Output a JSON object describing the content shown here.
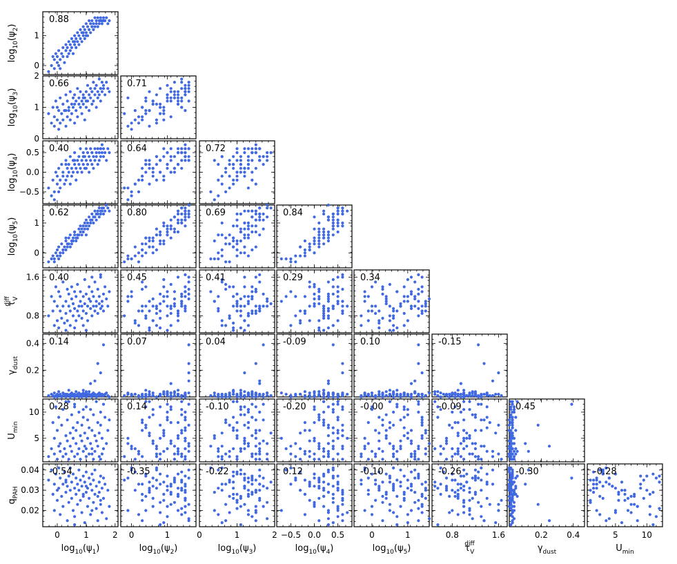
{
  "chart_data": {
    "type": "scatter",
    "layout": "corner",
    "marker_color": "#4169E1",
    "variables": [
      {
        "key": "psi1",
        "label_main": "log",
        "label_sub": "10",
        "label_rest": "(ψ",
        "label_sub2": "1",
        "label_end": ")",
        "range": [
          -0.5,
          2.1
        ],
        "ticks": [
          0,
          1,
          2
        ],
        "tick_labels": [
          "0",
          "1",
          "2"
        ]
      },
      {
        "key": "psi2",
        "label_main": "log",
        "label_sub": "10",
        "label_rest": "(ψ",
        "label_sub2": "2",
        "label_end": ")",
        "range": [
          -0.3,
          1.8
        ],
        "ticks": [
          0,
          1
        ],
        "tick_labels": [
          "0",
          "1"
        ]
      },
      {
        "key": "psi3",
        "label_main": "log",
        "label_sub": "10",
        "label_rest": "(ψ",
        "label_sub2": "3",
        "label_end": ")",
        "range": [
          0,
          2.0
        ],
        "ticks": [
          0,
          1,
          2
        ],
        "tick_labels": [
          "0",
          "1",
          "2"
        ]
      },
      {
        "key": "psi4",
        "label_main": "log",
        "label_sub": "10",
        "label_rest": "(ψ",
        "label_sub2": "4",
        "label_end": ")",
        "range": [
          -0.8,
          0.8
        ],
        "ticks": [
          -0.5,
          0.0,
          0.5
        ],
        "tick_labels": [
          "−0.5",
          "0.0",
          "0.5"
        ]
      },
      {
        "key": "psi5",
        "label_main": "log",
        "label_sub": "10",
        "label_rest": "(ψ",
        "label_sub2": "5",
        "label_end": ")",
        "range": [
          -0.5,
          1.6
        ],
        "ticks": [
          0,
          1
        ],
        "tick_labels": [
          "0",
          "1"
        ]
      },
      {
        "key": "tauV",
        "label_main": "τ",
        "label_sub": "V",
        "label_sup": "diff",
        "range": [
          0.45,
          1.75
        ],
        "ticks": [
          0.8,
          1.6
        ],
        "tick_labels": [
          "0.8",
          "1.6"
        ]
      },
      {
        "key": "gamma",
        "label_main": "γ",
        "label_sub": "dust",
        "range": [
          0.0,
          0.47
        ],
        "ticks": [
          0.2,
          0.4
        ],
        "tick_labels": [
          "0.2",
          "0.4"
        ]
      },
      {
        "key": "umin",
        "label_main": "U",
        "label_sub": "min",
        "range": [
          0.5,
          12.5
        ],
        "ticks": [
          5,
          10
        ],
        "tick_labels": [
          "5",
          "10"
        ]
      },
      {
        "key": "qpah",
        "label_main": "q",
        "label_sub": "PAH",
        "range": [
          0.012,
          0.043
        ],
        "ticks": [
          0.02,
          0.03,
          0.04
        ],
        "tick_labels": [
          "0.02",
          "0.03",
          "0.04"
        ]
      }
    ],
    "correlations": [
      {
        "row": 1,
        "col": 0,
        "r": "0.88"
      },
      {
        "row": 2,
        "col": 0,
        "r": "0.66"
      },
      {
        "row": 2,
        "col": 1,
        "r": "0.71"
      },
      {
        "row": 3,
        "col": 0,
        "r": "0.40"
      },
      {
        "row": 3,
        "col": 1,
        "r": "0.64"
      },
      {
        "row": 3,
        "col": 2,
        "r": "0.72"
      },
      {
        "row": 4,
        "col": 0,
        "r": "0.62"
      },
      {
        "row": 4,
        "col": 1,
        "r": "0.80"
      },
      {
        "row": 4,
        "col": 2,
        "r": "0.69"
      },
      {
        "row": 4,
        "col": 3,
        "r": "0.84"
      },
      {
        "row": 5,
        "col": 0,
        "r": "0.40"
      },
      {
        "row": 5,
        "col": 1,
        "r": "0.45"
      },
      {
        "row": 5,
        "col": 2,
        "r": "0.41"
      },
      {
        "row": 5,
        "col": 3,
        "r": "0.29"
      },
      {
        "row": 5,
        "col": 4,
        "r": "0.34"
      },
      {
        "row": 6,
        "col": 0,
        "r": "0.14"
      },
      {
        "row": 6,
        "col": 1,
        "r": "0.07"
      },
      {
        "row": 6,
        "col": 2,
        "r": "0.04"
      },
      {
        "row": 6,
        "col": 3,
        "r": "-0.09"
      },
      {
        "row": 6,
        "col": 4,
        "r": "0.10"
      },
      {
        "row": 6,
        "col": 5,
        "r": "-0.15"
      },
      {
        "row": 7,
        "col": 0,
        "r": "0.28"
      },
      {
        "row": 7,
        "col": 1,
        "r": "0.14"
      },
      {
        "row": 7,
        "col": 2,
        "r": "-0.10"
      },
      {
        "row": 7,
        "col": 3,
        "r": "-0.20"
      },
      {
        "row": 7,
        "col": 4,
        "r": "-0.00"
      },
      {
        "row": 7,
        "col": 5,
        "r": "-0.09"
      },
      {
        "row": 7,
        "col": 6,
        "r": "0.45"
      },
      {
        "row": 8,
        "col": 0,
        "r": "-0.54"
      },
      {
        "row": 8,
        "col": 1,
        "r": "-0.35"
      },
      {
        "row": 8,
        "col": 2,
        "r": "-0.22"
      },
      {
        "row": 8,
        "col": 3,
        "r": "0.12"
      },
      {
        "row": 8,
        "col": 4,
        "r": "-0.10"
      },
      {
        "row": 8,
        "col": 5,
        "r": "-0.26"
      },
      {
        "row": 8,
        "col": 6,
        "r": "-0.30"
      },
      {
        "row": 8,
        "col": 7,
        "r": "-0.28"
      }
    ],
    "points": {
      "psi1": [
        -0.3,
        -0.2,
        -0.15,
        -0.1,
        -0.1,
        -0.05,
        0.0,
        0.0,
        0.05,
        0.05,
        0.1,
        0.1,
        0.15,
        0.2,
        0.2,
        0.25,
        0.3,
        0.3,
        0.35,
        0.35,
        0.4,
        0.4,
        0.45,
        0.45,
        0.5,
        0.5,
        0.55,
        0.55,
        0.6,
        0.6,
        0.65,
        0.65,
        0.7,
        0.7,
        0.75,
        0.75,
        0.8,
        0.8,
        0.85,
        0.85,
        0.9,
        0.9,
        0.95,
        0.95,
        1.0,
        1.0,
        1.05,
        1.05,
        1.1,
        1.1,
        1.15,
        1.15,
        1.2,
        1.2,
        1.25,
        1.25,
        1.3,
        1.3,
        1.35,
        1.35,
        1.4,
        1.4,
        1.45,
        1.45,
        1.5,
        1.5,
        1.55,
        1.55,
        1.6,
        1.6,
        1.65,
        1.7,
        1.75,
        1.8,
        0.3,
        0.6,
        0.9,
        1.2,
        1.5,
        1.0
      ],
      "psi2": [
        -0.2,
        0.0,
        0.3,
        0.2,
        -0.1,
        0.4,
        0.1,
        0.3,
        0.0,
        0.5,
        0.2,
        -0.1,
        0.4,
        0.3,
        0.6,
        0.1,
        0.5,
        0.7,
        0.3,
        0.6,
        0.4,
        0.8,
        0.5,
        0.7,
        0.6,
        0.9,
        0.4,
        0.8,
        0.7,
        1.0,
        0.6,
        0.9,
        0.8,
        1.1,
        0.7,
        1.0,
        0.9,
        1.2,
        0.8,
        1.1,
        1.0,
        1.3,
        0.9,
        1.2,
        1.1,
        1.4,
        1.0,
        1.3,
        1.2,
        1.5,
        1.1,
        1.4,
        1.3,
        1.5,
        1.2,
        1.4,
        1.3,
        1.6,
        1.4,
        1.5,
        1.3,
        1.6,
        1.4,
        1.5,
        1.5,
        1.6,
        1.4,
        1.5,
        1.6,
        1.5,
        1.5,
        1.6,
        1.4,
        1.5,
        0.5,
        0.8,
        1.1,
        1.3,
        1.5,
        1.0
      ],
      "psi3": [
        0.8,
        0.5,
        1.0,
        0.7,
        0.4,
        1.2,
        0.6,
        1.0,
        0.3,
        0.9,
        0.5,
        1.3,
        0.8,
        0.6,
        1.1,
        0.9,
        0.4,
        1.4,
        0.7,
        1.2,
        0.9,
        1.0,
        1.5,
        0.6,
        1.1,
        0.8,
        1.3,
        1.0,
        0.5,
        1.4,
        1.2,
        0.9,
        1.6,
        0.7,
        1.1,
        1.3,
        1.0,
        1.5,
        0.8,
        1.2,
        1.4,
        1.1,
        0.6,
        1.3,
        1.5,
        1.0,
        1.7,
        1.2,
        1.4,
        0.9,
        1.6,
        1.3,
        1.1,
        1.5,
        1.8,
        1.2,
        1.4,
        1.6,
        1.0,
        1.7,
        1.3,
        1.5,
        1.9,
        1.4,
        1.6,
        1.2,
        1.8,
        1.5,
        1.7,
        1.6,
        1.4,
        1.8,
        1.6,
        1.5,
        0.9,
        1.1,
        1.3,
        1.5,
        1.6,
        1.2
      ],
      "psi4": [
        -0.4,
        -0.6,
        -0.2,
        -0.5,
        -0.7,
        0.0,
        -0.3,
        -0.1,
        -0.5,
        0.1,
        -0.2,
        -0.4,
        0.2,
        -0.1,
        0.0,
        -0.3,
        0.3,
        -0.2,
        0.1,
        -0.1,
        0.2,
        0.0,
        -0.3,
        0.4,
        0.1,
        -0.1,
        0.3,
        0.0,
        0.2,
        0.5,
        0.1,
        -0.2,
        0.3,
        0.0,
        0.4,
        0.2,
        0.6,
        0.1,
        0.3,
        0.0,
        0.5,
        0.2,
        0.4,
        0.1,
        0.6,
        0.3,
        0.2,
        0.5,
        0.0,
        0.4,
        0.3,
        0.6,
        0.2,
        0.5,
        0.4,
        0.1,
        0.6,
        0.3,
        0.5,
        0.4,
        0.2,
        0.6,
        0.5,
        0.3,
        0.4,
        0.6,
        0.5,
        0.7,
        0.4,
        0.6,
        0.5,
        0.3,
        0.6,
        0.5,
        0.2,
        0.3,
        0.4,
        0.5,
        0.6,
        0.1
      ],
      "psi5": [
        -0.3,
        -0.2,
        -0.1,
        -0.3,
        -0.2,
        0.0,
        -0.1,
        0.1,
        -0.2,
        0.2,
        0.0,
        -0.1,
        0.3,
        0.1,
        0.0,
        0.2,
        0.4,
        0.1,
        0.3,
        0.2,
        0.5,
        0.3,
        0.2,
        0.6,
        0.4,
        0.3,
        0.5,
        0.4,
        0.6,
        0.7,
        0.5,
        0.4,
        0.6,
        0.5,
        0.8,
        0.6,
        0.9,
        0.7,
        0.6,
        0.8,
        0.9,
        0.7,
        1.0,
        0.8,
        0.9,
        1.1,
        0.8,
        1.0,
        1.2,
        0.9,
        1.1,
        1.0,
        1.3,
        1.1,
        1.2,
        1.0,
        1.4,
        1.2,
        1.3,
        1.1,
        1.4,
        1.3,
        1.5,
        1.2,
        1.3,
        1.4,
        1.5,
        1.4,
        1.3,
        1.5,
        1.4,
        1.6,
        1.5,
        1.4,
        0.5,
        0.7,
        0.9,
        1.1,
        1.3,
        0.6
      ],
      "tauV": [
        0.8,
        1.2,
        0.9,
        0.6,
        1.1,
        1.4,
        0.7,
        1.0,
        1.3,
        0.55,
        0.9,
        1.2,
        0.75,
        1.5,
        1.0,
        0.65,
        1.1,
        0.85,
        1.35,
        0.7,
        1.0,
        1.25,
        0.9,
        0.6,
        1.15,
        1.4,
        0.8,
        1.05,
        0.95,
        1.3,
        0.7,
        1.2,
        0.9,
        1.45,
        1.0,
        0.8,
        1.1,
        1.3,
        0.75,
        1.0,
        1.2,
        0.9,
        1.55,
        1.05,
        0.85,
        1.25,
        1.0,
        0.7,
        1.15,
        1.4,
        0.95,
        1.1,
        0.8,
        1.3,
        1.0,
        1.2,
        0.9,
        1.5,
        1.1,
        1.0,
        0.85,
        1.35,
        1.05,
        1.2,
        0.95,
        1.6,
        1.1,
        1.0,
        1.25,
        0.9,
        1.4,
        1.15,
        1.0,
        1.3,
        0.5,
        0.55,
        0.6,
        1.6,
        1.65,
        0.5
      ],
      "gamma": [
        0.01,
        0.02,
        0.01,
        0.0,
        0.03,
        0.01,
        0.02,
        0.0,
        0.01,
        0.04,
        0.01,
        0.02,
        0.0,
        0.01,
        0.03,
        0.02,
        0.01,
        0.0,
        0.02,
        0.01,
        0.05,
        0.01,
        0.02,
        0.0,
        0.01,
        0.03,
        0.02,
        0.01,
        0.0,
        0.02,
        0.01,
        0.04,
        0.02,
        0.01,
        0.0,
        0.03,
        0.02,
        0.01,
        0.02,
        0.0,
        0.01,
        0.05,
        0.02,
        0.01,
        0.03,
        0.0,
        0.02,
        0.01,
        0.04,
        0.02,
        0.1,
        0.01,
        0.02,
        0.0,
        0.03,
        0.01,
        0.02,
        0.12,
        0.01,
        0.0,
        0.02,
        0.25,
        0.01,
        0.03,
        0.02,
        0.18,
        0.01,
        0.02,
        0.39,
        0.01,
        0.02,
        0.03,
        0.01,
        0.0,
        0.02,
        0.01,
        0.03,
        0.02,
        0.01,
        0.04
      ],
      "umin": [
        1.5,
        3.0,
        8.0,
        2.0,
        5.0,
        11.0,
        1.0,
        6.5,
        3.5,
        9.0,
        2.5,
        4.0,
        7.5,
        1.5,
        10.5,
        3.0,
        5.5,
        2.0,
        8.5,
        4.5,
        12.0,
        1.0,
        6.0,
        3.5,
        9.5,
        2.5,
        7.0,
        5.0,
        1.5,
        11.5,
        4.0,
        6.5,
        2.0,
        8.0,
        3.0,
        10.0,
        5.5,
        1.0,
        7.5,
        4.5,
        9.0,
        2.5,
        6.0,
        3.5,
        11.0,
        1.5,
        8.5,
        5.0,
        2.0,
        7.0,
        4.0,
        10.5,
        3.0,
        6.5,
        1.0,
        9.5,
        5.5,
        2.5,
        12.0,
        4.5,
        8.0,
        3.5,
        6.0,
        1.5,
        10.0,
        7.5,
        2.0,
        5.0,
        11.5,
        3.0,
        9.0,
        4.0,
        6.5,
        8.5,
        12.0,
        11.0,
        10.5,
        2.0,
        1.0,
        3.0
      ],
      "qpah": [
        0.035,
        0.04,
        0.028,
        0.033,
        0.02,
        0.038,
        0.03,
        0.025,
        0.041,
        0.031,
        0.018,
        0.036,
        0.027,
        0.033,
        0.022,
        0.039,
        0.029,
        0.035,
        0.015,
        0.032,
        0.037,
        0.024,
        0.03,
        0.041,
        0.026,
        0.034,
        0.02,
        0.038,
        0.031,
        0.017,
        0.036,
        0.028,
        0.033,
        0.023,
        0.04,
        0.03,
        0.025,
        0.035,
        0.019,
        0.032,
        0.037,
        0.027,
        0.014,
        0.034,
        0.029,
        0.039,
        0.022,
        0.031,
        0.036,
        0.026,
        0.033,
        0.018,
        0.038,
        0.03,
        0.024,
        0.035,
        0.028,
        0.04,
        0.021,
        0.032,
        0.027,
        0.015,
        0.034,
        0.029,
        0.037,
        0.023,
        0.031,
        0.019,
        0.036,
        0.026,
        0.033,
        0.016,
        0.03,
        0.022,
        0.034,
        0.013,
        0.028,
        0.02,
        0.025,
        0.032
      ]
    }
  }
}
